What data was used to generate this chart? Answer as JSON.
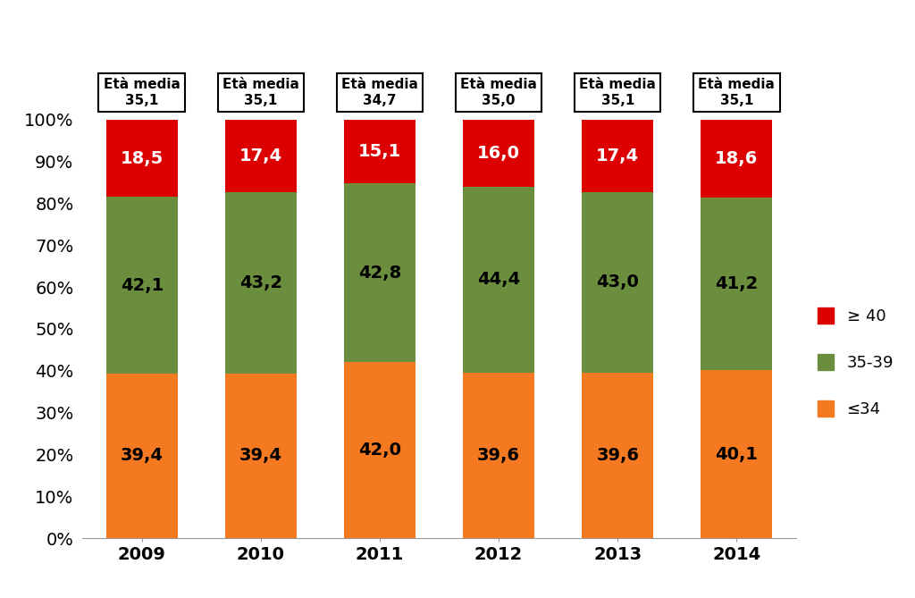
{
  "years": [
    "2009",
    "2010",
    "2011",
    "2012",
    "2013",
    "2014"
  ],
  "le34": [
    39.4,
    39.4,
    42.0,
    39.6,
    39.6,
    40.1
  ],
  "age3539": [
    42.1,
    43.2,
    42.8,
    44.4,
    43.0,
    41.2
  ],
  "ge40": [
    18.5,
    17.4,
    15.1,
    16.0,
    17.4,
    18.6
  ],
  "eta_media": [
    "35,1",
    "35,1",
    "34,7",
    "35,0",
    "35,1",
    "35,1"
  ],
  "color_le34": "#F47920",
  "color_3539": "#6B8E3E",
  "color_ge40": "#DD0000",
  "bar_width": 0.6,
  "legend_labels": [
    "≥ 40",
    "35-39",
    "≤34"
  ],
  "background_color": "#FFFFFF",
  "annotation_fontsize": 14,
  "tick_fontsize": 14,
  "legend_fontsize": 13,
  "eta_fontsize": 11
}
